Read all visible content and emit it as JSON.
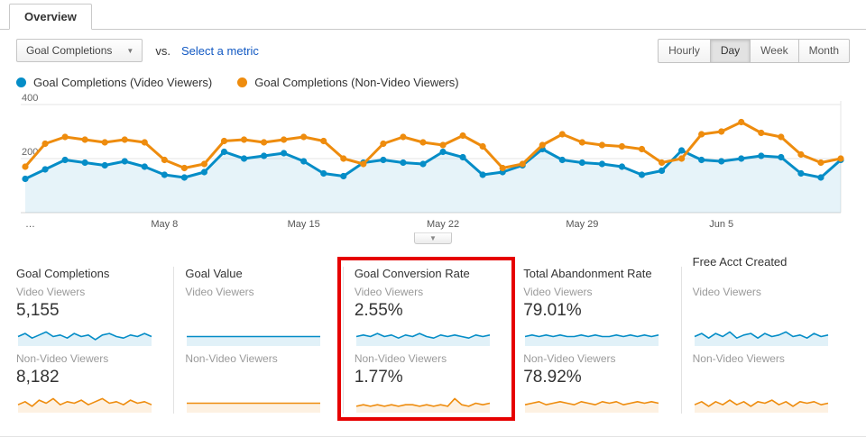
{
  "tab": {
    "label": "Overview"
  },
  "controls": {
    "metric_dropdown": {
      "label": "Goal Completions"
    },
    "vs_label": "vs.",
    "select_metric_link": "Select a metric",
    "granularity": {
      "options": [
        "Hourly",
        "Day",
        "Week",
        "Month"
      ],
      "selected": "Day"
    }
  },
  "legend": [
    {
      "label": "Goal Completions (Video Viewers)",
      "color": "#058dc7"
    },
    {
      "label": "Goal Completions (Non-Video Viewers)",
      "color": "#ee8c0e"
    }
  ],
  "chart_data": {
    "type": "line",
    "ylim": [
      0,
      400
    ],
    "yticks": [
      200,
      400
    ],
    "grid": true,
    "x_labels": [
      {
        "index": 0,
        "label": "…"
      },
      {
        "index": 7,
        "label": "May 8"
      },
      {
        "index": 14,
        "label": "May 15"
      },
      {
        "index": 21,
        "label": "May 22"
      },
      {
        "index": 28,
        "label": "May 29"
      },
      {
        "index": 35,
        "label": "Jun 5"
      }
    ],
    "series": [
      {
        "name": "Goal Completions (Video Viewers)",
        "color": "#058dc7",
        "fill": true,
        "fill_color": "rgba(5,141,199,0.10)",
        "values": [
          125,
          160,
          195,
          185,
          175,
          190,
          170,
          140,
          130,
          150,
          225,
          200,
          210,
          220,
          190,
          145,
          135,
          185,
          195,
          185,
          180,
          225,
          205,
          140,
          150,
          175,
          235,
          195,
          185,
          180,
          170,
          140,
          155,
          230,
          195,
          190,
          200,
          210,
          205,
          145,
          130,
          195
        ]
      },
      {
        "name": "Goal Completions (Non-Video Viewers)",
        "color": "#ee8c0e",
        "fill": false,
        "fill_color": "rgba(238,140,14,0.10)",
        "values": [
          170,
          255,
          280,
          270,
          260,
          270,
          260,
          195,
          165,
          180,
          265,
          270,
          260,
          270,
          280,
          265,
          200,
          180,
          255,
          280,
          260,
          250,
          285,
          245,
          165,
          180,
          250,
          290,
          260,
          250,
          245,
          235,
          185,
          200,
          290,
          300,
          335,
          295,
          280,
          215,
          185,
          200
        ]
      }
    ]
  },
  "cards": [
    {
      "title": "Goal Completions",
      "highlighted": false,
      "video": {
        "label": "Video Viewers",
        "value": "5,155",
        "spark": [
          5,
          7,
          4,
          6,
          8,
          5,
          6,
          4,
          7,
          5,
          6,
          3,
          6,
          7,
          5,
          4,
          6,
          5,
          7,
          5
        ]
      },
      "nonvideo": {
        "label": "Non-Video Viewers",
        "value": "8,182",
        "spark": [
          4,
          6,
          3,
          7,
          5,
          8,
          4,
          6,
          5,
          7,
          4,
          6,
          8,
          5,
          6,
          4,
          7,
          5,
          6,
          4
        ]
      }
    },
    {
      "title": "Goal Value",
      "highlighted": false,
      "video": {
        "label": "Video Viewers",
        "value": "",
        "spark": [
          5,
          5,
          5,
          5,
          5,
          5,
          5,
          5,
          5,
          5,
          5,
          5,
          5,
          5,
          5,
          5,
          5,
          5,
          5,
          5
        ]
      },
      "nonvideo": {
        "label": "Non-Video Viewers",
        "value": "",
        "spark": [
          5,
          5,
          5,
          5,
          5,
          5,
          5,
          5,
          5,
          5,
          5,
          5,
          5,
          5,
          5,
          5,
          5,
          5,
          5,
          5
        ]
      }
    },
    {
      "title": "Goal Conversion Rate",
      "highlighted": true,
      "video": {
        "label": "Video Viewers",
        "value": "2.55%",
        "spark": [
          5,
          6,
          5,
          7,
          5,
          6,
          4,
          6,
          5,
          7,
          5,
          4,
          6,
          5,
          6,
          5,
          4,
          6,
          5,
          6
        ]
      },
      "nonvideo": {
        "label": "Non-Video Viewers",
        "value": "1.77%",
        "spark": [
          3,
          4,
          3,
          4,
          3,
          4,
          3,
          4,
          4,
          3,
          4,
          3,
          4,
          3,
          8,
          4,
          3,
          5,
          4,
          5
        ]
      }
    },
    {
      "title": "Total Abandonment Rate",
      "highlighted": false,
      "video": {
        "label": "Video Viewers",
        "value": "79.01%",
        "spark": [
          5,
          6,
          5,
          6,
          5,
          6,
          5,
          5,
          6,
          5,
          6,
          5,
          5,
          6,
          5,
          6,
          5,
          6,
          5,
          6
        ]
      },
      "nonvideo": {
        "label": "Non-Video Viewers",
        "value": "78.92%",
        "spark": [
          4,
          5,
          6,
          4,
          5,
          6,
          5,
          4,
          6,
          5,
          4,
          6,
          5,
          6,
          4,
          5,
          6,
          5,
          6,
          5
        ]
      }
    },
    {
      "title": "Free Acct Created",
      "highlighted": false,
      "video": {
        "label": "Video Viewers",
        "value": "",
        "spark": [
          5,
          7,
          4,
          7,
          5,
          8,
          4,
          6,
          7,
          4,
          7,
          5,
          6,
          8,
          5,
          6,
          4,
          7,
          5,
          6
        ]
      },
      "nonvideo": {
        "label": "Non-Video Viewers",
        "value": "",
        "spark": [
          4,
          6,
          3,
          6,
          4,
          7,
          4,
          6,
          3,
          6,
          5,
          7,
          4,
          6,
          3,
          6,
          5,
          6,
          4,
          5
        ]
      }
    }
  ],
  "colors": {
    "video": "#058dc7",
    "nonvideo": "#ee8c0e",
    "video_fill": "rgba(5,141,199,0.12)",
    "nonvideo_fill": "rgba(238,140,14,0.12)",
    "highlight_box": "#e60000",
    "link": "#1259c3"
  }
}
